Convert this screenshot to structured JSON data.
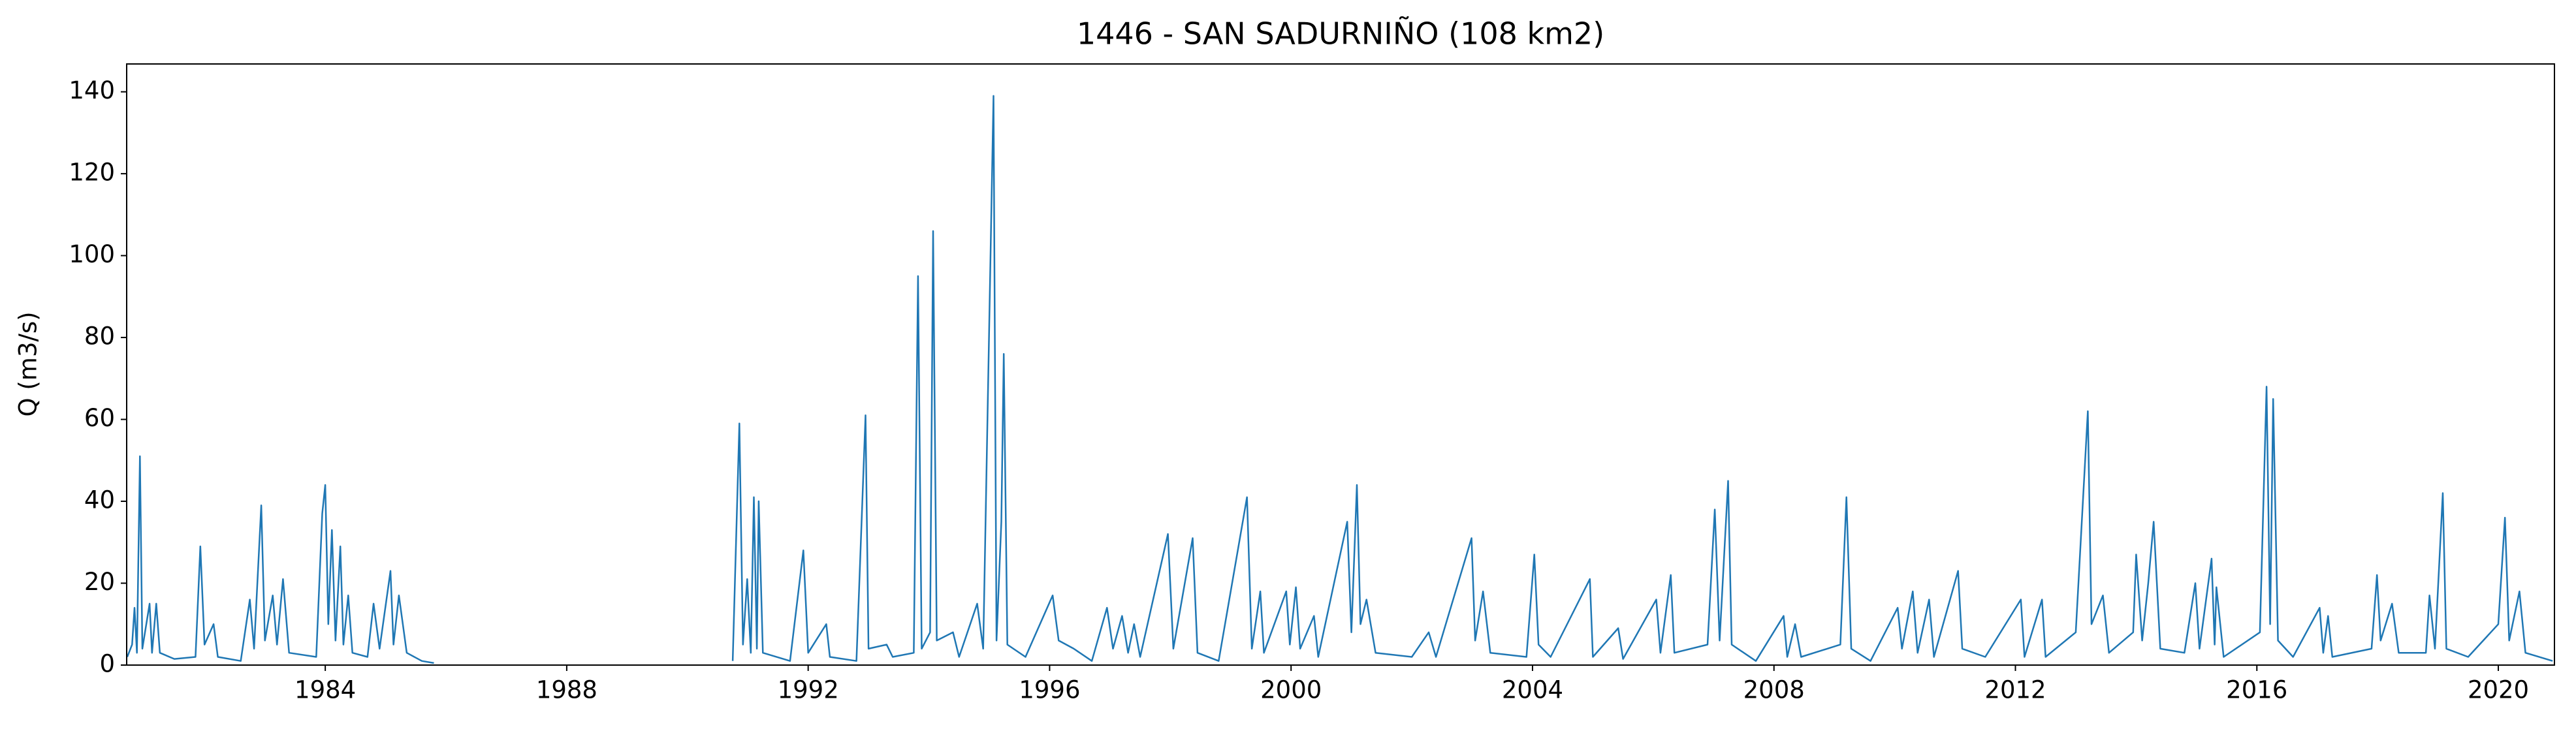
{
  "chart_data": {
    "type": "line",
    "title": "1446 - SAN SADURNIÑO (108 km2)",
    "ylabel": "Q (m3/s)",
    "color": "#1f77b4",
    "xlim": [
      1980.71,
      2020.93
    ],
    "ylim": [
      0,
      146.8
    ],
    "xticks": [
      1984,
      1988,
      1992,
      1996,
      2000,
      2004,
      2008,
      2012,
      2016,
      2020
    ],
    "yticks": [
      0,
      20,
      40,
      60,
      80,
      100,
      120,
      140
    ],
    "grid": false,
    "x": [
      1980.72,
      1980.8,
      1980.84,
      1980.88,
      1980.93,
      1980.97,
      1981.09,
      1981.13,
      1981.2,
      1981.26,
      1981.5,
      1981.85,
      1981.93,
      1982.0,
      1982.15,
      1982.22,
      1982.6,
      1982.75,
      1982.82,
      1982.94,
      1983.0,
      1983.13,
      1983.2,
      1983.3,
      1983.4,
      1983.85,
      1983.95,
      1984.0,
      1984.05,
      1984.11,
      1984.17,
      1984.25,
      1984.3,
      1984.38,
      1984.45,
      1984.7,
      1984.8,
      1984.9,
      1985.08,
      1985.13,
      1985.22,
      1985.35,
      1985.6,
      1985.8,
      1988,
      1990.75,
      1990.86,
      1990.92,
      1990.99,
      1991.05,
      1991.1,
      1991.15,
      1991.18,
      1991.25,
      1991.7,
      1991.92,
      1992.0,
      1992.3,
      1992.36,
      1992.8,
      1992.95,
      1993.0,
      1993.3,
      1993.4,
      1993.75,
      1993.82,
      1993.88,
      1994.02,
      1994.07,
      1994.13,
      1994.4,
      1994.5,
      1994.8,
      1994.9,
      1995.07,
      1995.12,
      1995.2,
      1995.24,
      1995.3,
      1995.6,
      1996.05,
      1996.15,
      1996.4,
      1996.7,
      1996.95,
      1997.05,
      1997.2,
      1997.3,
      1997.4,
      1997.5,
      1997.96,
      1998.05,
      1998.37,
      1998.45,
      1998.8,
      1999.27,
      1999.35,
      1999.49,
      1999.55,
      1999.92,
      1999.98,
      2000.08,
      2000.15,
      2000.38,
      2000.45,
      2000.93,
      2001.0,
      2001.09,
      2001.15,
      2001.25,
      2001.4,
      2002.0,
      2002.28,
      2002.4,
      2002.99,
      2003.05,
      2003.18,
      2003.3,
      2003.9,
      2004.03,
      2004.1,
      2004.3,
      2004.95,
      2005.0,
      2005.42,
      2005.5,
      2006.05,
      2006.12,
      2006.29,
      2006.35,
      2006.9,
      2007.02,
      2007.1,
      2007.24,
      2007.3,
      2007.7,
      2008.16,
      2008.22,
      2008.35,
      2008.45,
      2009.1,
      2009.2,
      2009.28,
      2009.6,
      2010.05,
      2010.12,
      2010.3,
      2010.38,
      2010.57,
      2010.65,
      2011.05,
      2011.12,
      2011.5,
      2012.09,
      2012.15,
      2012.44,
      2012.5,
      2013.0,
      2013.2,
      2013.26,
      2013.45,
      2013.55,
      2013.95,
      2014.0,
      2014.1,
      2014.2,
      2014.29,
      2014.4,
      2014.8,
      2014.98,
      2015.05,
      2015.25,
      2015.3,
      2015.33,
      2015.45,
      2016.05,
      2016.16,
      2016.22,
      2016.27,
      2016.35,
      2016.6,
      2017.04,
      2017.1,
      2017.18,
      2017.25,
      2017.9,
      2017.99,
      2018.05,
      2018.24,
      2018.35,
      2018.8,
      2018.86,
      2018.95,
      2019.08,
      2019.14,
      2019.5,
      2020.0,
      2020.11,
      2020.18,
      2020.35,
      2020.45,
      2020.9
    ],
    "values": [
      2,
      5,
      14,
      3,
      51,
      4,
      15,
      3,
      15,
      3,
      1.5,
      2,
      29,
      5,
      10,
      2,
      1,
      16,
      4,
      39,
      6,
      17,
      5,
      21,
      3,
      2,
      37,
      44,
      10,
      33,
      6,
      29,
      5,
      17,
      3,
      2,
      15,
      4,
      23,
      5,
      17,
      3,
      1,
      0.5,
      null,
      1,
      59,
      5,
      21,
      3,
      41,
      4,
      40,
      3,
      1,
      28,
      3,
      10,
      2,
      1,
      61,
      4,
      5,
      2,
      3,
      95,
      4,
      8,
      106,
      6,
      8,
      2,
      15,
      4,
      139,
      6,
      35,
      76,
      5,
      2,
      17,
      6,
      4,
      1,
      14,
      4,
      12,
      3,
      10,
      2,
      32,
      4,
      31,
      3,
      1,
      41,
      4,
      18,
      3,
      18,
      5,
      19,
      4,
      12,
      2,
      35,
      8,
      44,
      10,
      16,
      3,
      2,
      8,
      2,
      31,
      6,
      18,
      3,
      2,
      27,
      5,
      2,
      21,
      2,
      9,
      1.5,
      16,
      3,
      22,
      3,
      5,
      38,
      6,
      45,
      5,
      1,
      12,
      2,
      10,
      2,
      5,
      41,
      4,
      1,
      14,
      4,
      18,
      3,
      16,
      2,
      23,
      4,
      2,
      16,
      2,
      16,
      2,
      8,
      62,
      10,
      17,
      3,
      8,
      27,
      6,
      20,
      35,
      4,
      3,
      20,
      4,
      26,
      5,
      19,
      2,
      8,
      68,
      10,
      65,
      6,
      2,
      14,
      3,
      12,
      2,
      4,
      22,
      6,
      15,
      3,
      3,
      17,
      4,
      42,
      4,
      2,
      10,
      36,
      6,
      18,
      3,
      1
    ]
  }
}
